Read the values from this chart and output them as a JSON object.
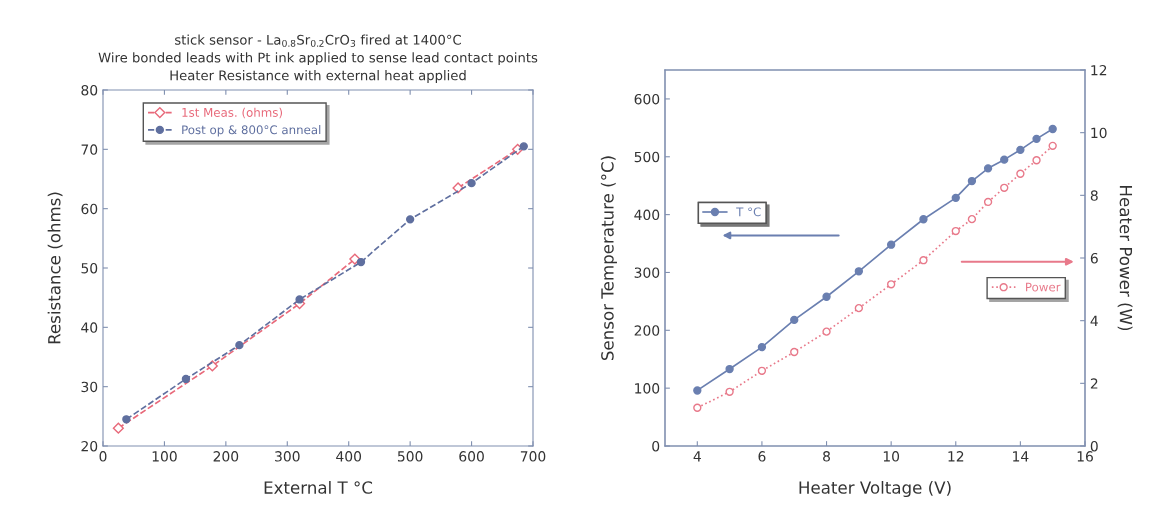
{
  "chart_data": [
    {
      "type": "line",
      "title": "stick sensor - La$_{0.8}$Sr$_{0.2}$CrO$_{3}$ fired at 1400°C",
      "subtitle": "Wire bonded leads with Pt ink applied to sense lead contact points\nHeater Resistance with external heat applied",
      "xlabel": "External T °C",
      "ylabel": "Resistance (ohms)",
      "xlim": [
        0,
        700
      ],
      "ylim": [
        20,
        80
      ],
      "xticks": [
        0,
        100,
        200,
        300,
        400,
        500,
        600,
        700
      ],
      "yticks": [
        20,
        30,
        40,
        50,
        60,
        70,
        80
      ],
      "legend": "upper left",
      "grid": false,
      "line_style": "dashed",
      "series": [
        {
          "name": "1st Meas. (ohms)",
          "color": "#e8697a",
          "marker": "diamond",
          "x": [
            25,
            178,
            320,
            410,
            497,
            578,
            675
          ],
          "values": [
            23,
            33.5,
            44,
            51.5,
            null,
            63.5,
            70
          ]
        },
        {
          "name": "Post op & 800°C anneal",
          "color": "#5f6f9f",
          "marker": "circle",
          "x": [
            38,
            135,
            222,
            320,
            420,
            500,
            600,
            685
          ],
          "values": [
            24.5,
            31.3,
            37,
            44.7,
            51,
            58.2,
            64.3,
            70.5
          ]
        }
      ]
    },
    {
      "type": "line",
      "xlabel": "Heater Voltage (V)",
      "ylabel": "Sensor Temperature (°C)",
      "y2label": "Heater Power (W)",
      "xlim": [
        3,
        16
      ],
      "ylim": [
        0,
        650
      ],
      "y2lim": [
        0,
        12
      ],
      "xticks": [
        4,
        6,
        8,
        10,
        12,
        14,
        16
      ],
      "yticks": [
        0,
        100,
        200,
        300,
        400,
        500,
        600
      ],
      "y2ticks": [
        0,
        2,
        4,
        6,
        8,
        10,
        12
      ],
      "grid": false,
      "marker": "circle",
      "legend": "center",
      "series": [
        {
          "name": "T °C",
          "color": "#6a7fb0",
          "line_style": "solid",
          "x": [
            4,
            5,
            6,
            7,
            8,
            9,
            10,
            11,
            12,
            12.5,
            13,
            13.5,
            14,
            14.5,
            15
          ],
          "values": [
            96,
            133,
            171,
            218,
            258,
            302,
            348,
            392,
            429,
            458,
            480,
            495,
            512,
            531,
            548
          ]
        },
        {
          "name": "Power",
          "color": "#e8798a",
          "line_style": "dotted",
          "axis": "y2",
          "x": [
            4,
            5,
            6,
            7,
            8,
            9,
            10,
            11,
            12,
            12.5,
            13,
            13.5,
            14,
            14.5,
            15
          ],
          "values": [
            1.22,
            1.73,
            2.4,
            3.0,
            3.65,
            4.4,
            5.16,
            5.93,
            6.86,
            7.24,
            7.79,
            8.24,
            8.69,
            9.12,
            9.58
          ]
        }
      ]
    }
  ]
}
